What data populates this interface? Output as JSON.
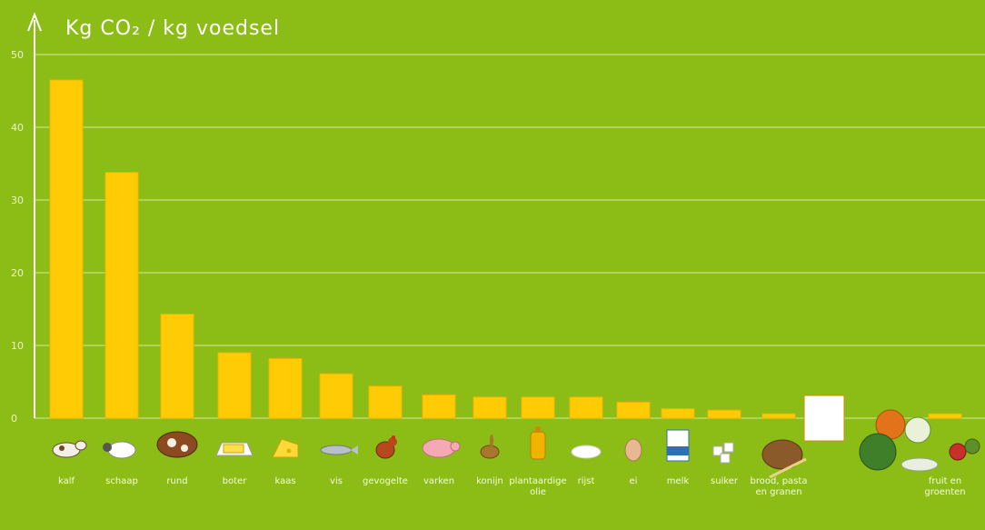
{
  "chart_data": {
    "type": "bar",
    "title": "Kg CO₂ / kg voedsel",
    "xlabel": "",
    "ylabel": "",
    "ylim": [
      0,
      50
    ],
    "yticks": [
      0,
      10,
      20,
      30,
      40,
      50
    ],
    "grid": true,
    "categories": [
      "kalf",
      "schaap",
      "rund",
      "boter",
      "kaas",
      "vis",
      "gevogelte",
      "varken",
      "konijn",
      "plantaardige olie",
      "rijst",
      "ei",
      "melk",
      "suiker",
      "brood, pasta en granen",
      "fruit en groenten"
    ],
    "values": [
      46.5,
      33.8,
      14.3,
      9.0,
      8.2,
      6.1,
      4.4,
      3.2,
      2.9,
      2.9,
      2.9,
      2.2,
      1.3,
      1.1,
      0.6,
      0.6
    ],
    "colors": {
      "bar": "#ffcb05",
      "background": "#8cbd17",
      "grid": "#b9db6a"
    },
    "icons": [
      "calf-icon",
      "sheep-icon",
      "cow-icon",
      "butter-icon",
      "cheese-icon",
      "fish-icon",
      "chicken-icon",
      "pig-icon",
      "rabbit-icon",
      "oil-bottle-icon",
      "rice-icon",
      "egg-icon",
      "milk-carton-icon",
      "sugar-cubes-icon",
      "bread-pasta-grain-icon",
      "fruit-vegetables-icon"
    ]
  }
}
